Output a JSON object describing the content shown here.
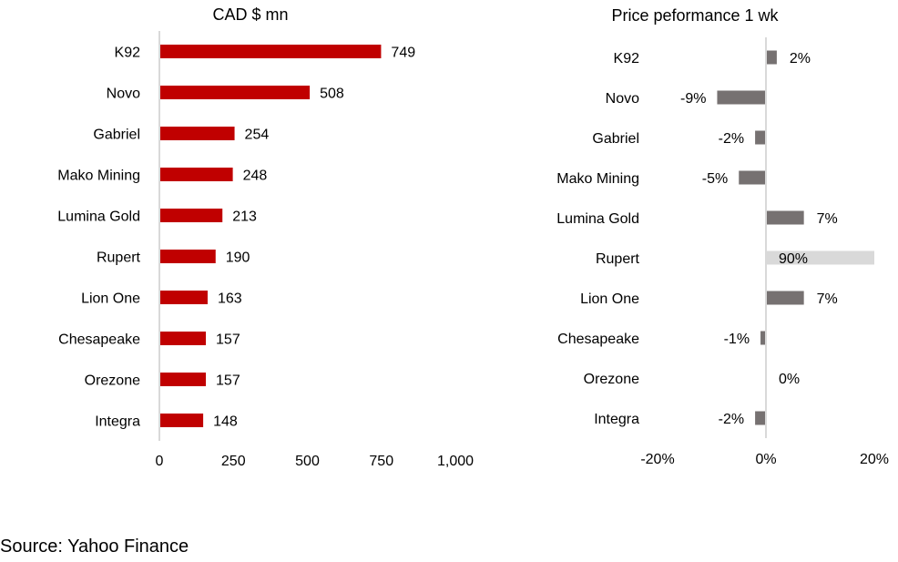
{
  "chart_data": [
    {
      "type": "bar",
      "orientation": "horizontal",
      "title": "CAD $ mn",
      "categories": [
        "K92",
        "Novo",
        "Gabriel",
        "Mako Mining",
        "Lumina Gold",
        "Rupert",
        "Lion One",
        "Chesapeake",
        "Orezone",
        "Integra"
      ],
      "values": [
        749,
        508,
        254,
        248,
        213,
        190,
        163,
        157,
        157,
        148
      ],
      "data_labels": [
        "749",
        "508",
        "254",
        "248",
        "213",
        "190",
        "163",
        "157",
        "157",
        "148"
      ],
      "xlim": [
        0,
        1000
      ],
      "x_ticks": [
        0,
        250,
        500,
        750,
        1000
      ],
      "x_tick_labels": [
        "0",
        "250",
        "500",
        "750",
        "1,000"
      ],
      "xlabel": "",
      "ylabel": "",
      "grid": false,
      "color": "#C00000"
    },
    {
      "type": "bar",
      "orientation": "horizontal",
      "title": "Price peformance 1 wk",
      "categories": [
        "K92",
        "Novo",
        "Gabriel",
        "Mako Mining",
        "Lumina Gold",
        "Rupert",
        "Lion One",
        "Chesapeake",
        "Orezone",
        "Integra"
      ],
      "values": [
        2,
        -9,
        -2,
        -5,
        7,
        90,
        7,
        -1,
        0,
        -2
      ],
      "data_labels": [
        "2%",
        "-9%",
        "-2%",
        "-5%",
        "7%",
        "90%",
        "7%",
        "-1%",
        "0%",
        "-2%"
      ],
      "xlim": [
        -20,
        20
      ],
      "x_ticks": [
        -20,
        0,
        20
      ],
      "x_tick_labels": [
        "-20%",
        "0%",
        "20%"
      ],
      "xlabel": "",
      "ylabel": "",
      "grid": false,
      "color": "#767171",
      "clipped_color": "#D9D9D9"
    }
  ],
  "footer": {
    "source": "Source: Yahoo Finance"
  },
  "colors": {
    "axis": "#D9D9D9"
  }
}
